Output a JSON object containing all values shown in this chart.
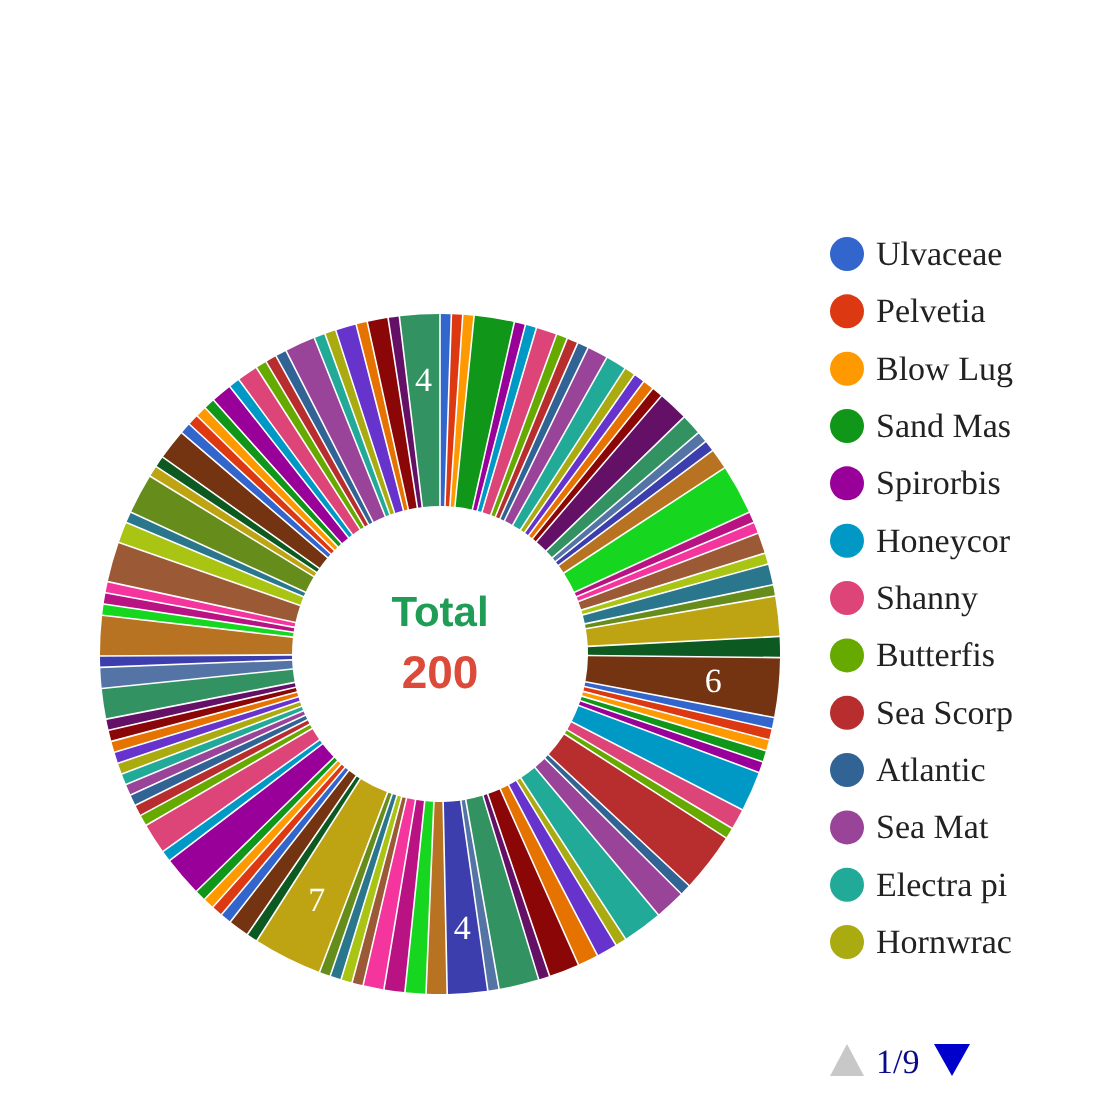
{
  "chart_data": {
    "type": "donut",
    "categories": [
      "Ulvaceae",
      "Pelvetia",
      "Blow Lug",
      "Sand Mas",
      "Spirorbis",
      "Honeycor",
      "Shanny",
      "Butterfis",
      "Sea Scorp",
      "Atlantic",
      "Sea Mat",
      "Electra pi",
      "Hornwrac",
      null,
      null,
      null,
      null,
      null,
      null,
      null,
      null,
      null,
      null,
      null,
      null,
      null,
      null,
      null,
      null,
      null,
      null,
      null,
      null,
      null,
      null,
      null,
      null,
      null,
      null,
      null,
      null,
      null,
      null,
      null,
      null,
      null,
      null,
      null,
      null,
      null,
      null,
      null,
      null,
      null,
      null,
      null,
      null,
      null,
      null,
      null,
      null,
      null,
      null,
      null,
      null,
      null,
      null,
      null,
      null,
      null,
      null,
      null,
      null,
      null,
      null,
      null,
      null,
      null,
      null,
      null,
      null,
      null,
      null,
      null,
      null,
      null,
      null,
      null,
      null,
      null,
      null,
      null,
      null,
      null,
      null,
      null,
      null,
      null,
      null,
      null,
      null,
      null,
      null,
      null,
      null,
      null,
      null,
      null,
      null,
      null,
      null
    ],
    "values": [
      1,
      1,
      1,
      4,
      1,
      1,
      2,
      1,
      1,
      1,
      2,
      2,
      1,
      1,
      1,
      1,
      3,
      2,
      1,
      1,
      2,
      5,
      1,
      1,
      2,
      1,
      2,
      1,
      4,
      2,
      6,
      1,
      1,
      1,
      1,
      1,
      4,
      2,
      1,
      6,
      1,
      3,
      4,
      1,
      2,
      2,
      3,
      1,
      4,
      1,
      4,
      2,
      2,
      2,
      2,
      1,
      1,
      1,
      1,
      7,
      1,
      2,
      1,
      1,
      1,
      1,
      4,
      1,
      3,
      1,
      1,
      1,
      1,
      1,
      1,
      1,
      1,
      1,
      1,
      3,
      2,
      1,
      4,
      1,
      1,
      1,
      4,
      2,
      1,
      4,
      1,
      1,
      3,
      1,
      1,
      1,
      1,
      2,
      1,
      2,
      1,
      1,
      1,
      3,
      1,
      1,
      2,
      1,
      2,
      1,
      4
    ],
    "colors": [
      "#3366cc",
      "#dc3912",
      "#ff9900",
      "#109618",
      "#990099",
      "#0099c6",
      "#dd4477",
      "#66aa00",
      "#b82e2e",
      "#316395",
      "#994499",
      "#22aa99",
      "#aaaa11",
      "#6633cc",
      "#e67300",
      "#8b0707",
      "#651067",
      "#329262",
      "#5574a6",
      "#3b3eac",
      "#b77322",
      "#16d620",
      "#b91383",
      "#f4359e",
      "#9c5935",
      "#a9c413",
      "#2a778d",
      "#668d1c",
      "#bea413",
      "#0c5922",
      "#743411",
      "#3366cc",
      "#dc3912",
      "#ff9900",
      "#109618",
      "#990099",
      "#0099c6",
      "#dd4477",
      "#66aa00",
      "#b82e2e",
      "#316395",
      "#994499",
      "#22aa99",
      "#aaaa11",
      "#6633cc",
      "#e67300",
      "#8b0707",
      "#651067",
      "#329262",
      "#5574a6",
      "#3b3eac",
      "#b77322",
      "#16d620",
      "#b91383",
      "#f4359e",
      "#9c5935",
      "#a9c413",
      "#2a778d",
      "#668d1c",
      "#bea413",
      "#0c5922",
      "#743411",
      "#3366cc",
      "#dc3912",
      "#ff9900",
      "#109618",
      "#990099",
      "#0099c6",
      "#dd4477",
      "#66aa00",
      "#b82e2e",
      "#316395",
      "#994499",
      "#22aa99",
      "#aaaa11",
      "#6633cc",
      "#e67300",
      "#8b0707",
      "#651067",
      "#329262",
      "#5574a6",
      "#3b3eac",
      "#b77322",
      "#16d620",
      "#b91383",
      "#f4359e",
      "#9c5935",
      "#a9c413",
      "#2a778d",
      "#668d1c",
      "#bea413",
      "#0c5922",
      "#743411",
      "#3366cc",
      "#dc3912",
      "#ff9900",
      "#109618",
      "#990099",
      "#0099c6",
      "#dd4477",
      "#66aa00",
      "#b82e2e",
      "#316395",
      "#994499",
      "#22aa99",
      "#aaaa11",
      "#6633cc",
      "#e67300",
      "#8b0707",
      "#651067",
      "#329262"
    ],
    "value_labels": [
      null,
      null,
      null,
      null,
      null,
      null,
      null,
      null,
      null,
      null,
      null,
      null,
      null,
      null,
      null,
      null,
      null,
      null,
      null,
      null,
      null,
      null,
      null,
      null,
      null,
      null,
      null,
      null,
      null,
      null,
      "6",
      null,
      null,
      null,
      null,
      null,
      null,
      null,
      null,
      null,
      null,
      null,
      null,
      null,
      null,
      null,
      null,
      null,
      null,
      null,
      "4",
      null,
      null,
      null,
      null,
      null,
      null,
      null,
      null,
      "7",
      null,
      null,
      null,
      null,
      null,
      null,
      null,
      null,
      null,
      null,
      null,
      null,
      null,
      null,
      null,
      null,
      null,
      null,
      null,
      null,
      null,
      null,
      null,
      null,
      null,
      null,
      null,
      null,
      null,
      null,
      null,
      null,
      null,
      null,
      null,
      null,
      null,
      null,
      null,
      null,
      null,
      null,
      null,
      null,
      null,
      null,
      null,
      null,
      null,
      null,
      "4"
    ],
    "legend": "right",
    "annotations": [
      "Total",
      "200",
      "1/9"
    ]
  }
}
